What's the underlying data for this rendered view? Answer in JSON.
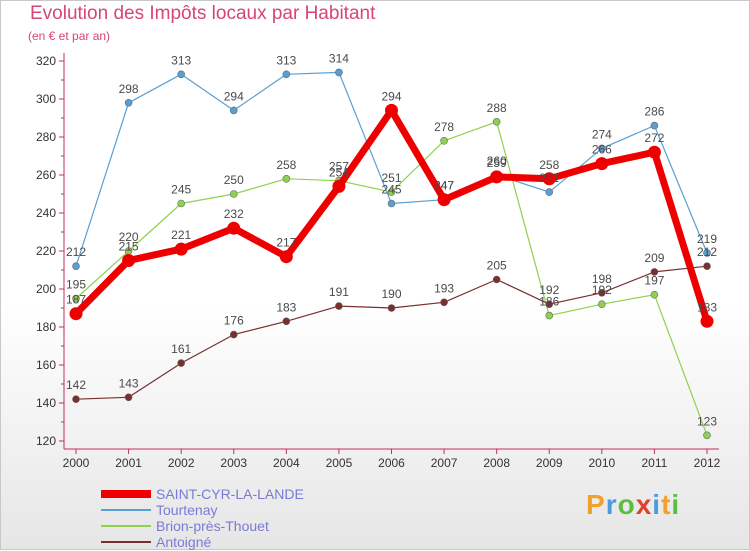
{
  "header": {
    "title": "Evolution des Impôts locaux par Habitant",
    "subtitle": "(en € et par an)"
  },
  "brand": {
    "logo_letters": [
      "P",
      "r",
      "o",
      "x",
      "i",
      "t",
      "i"
    ],
    "logo_colors": [
      "#f2a02c",
      "#4b9be0",
      "#5cbf3c",
      "#e0422c",
      "#4b9be0",
      "#f2a02c",
      "#5cbf3c"
    ]
  },
  "chart_data": {
    "type": "line",
    "title": "Evolution des Impôts locaux par Habitant",
    "subtitle": "(en € et par an)",
    "categories": [
      "2000",
      "2001",
      "2002",
      "2003",
      "2004",
      "2005",
      "2006",
      "2007",
      "2008",
      "2009",
      "2010",
      "2011",
      "2012"
    ],
    "ylim": [
      120,
      320
    ],
    "yticks": [
      120,
      140,
      160,
      180,
      200,
      220,
      240,
      260,
      280,
      300,
      320
    ],
    "grid": false,
    "legend_position": "bottom-left",
    "series": [
      {
        "name": "Tourtenay",
        "color": "#5a9fd4",
        "stroke": 1.2,
        "marker": 3.5,
        "values": [
          212,
          298,
          313,
          294,
          313,
          314,
          245,
          247,
          260,
          251,
          274,
          286,
          219
        ]
      },
      {
        "name": "Brion-près-Thouet",
        "color": "#8ed150",
        "stroke": 1.2,
        "marker": 3.5,
        "values": [
          195,
          220,
          245,
          250,
          258,
          257,
          251,
          278,
          288,
          186,
          192,
          197,
          123
        ]
      },
      {
        "name": "Antoigné",
        "color": "#7a2e2e",
        "stroke": 1.2,
        "marker": 3.5,
        "values": [
          142,
          143,
          161,
          176,
          183,
          191,
          190,
          193,
          205,
          192,
          198,
          209,
          212
        ]
      },
      {
        "name": "SAINT-CYR-LA-LANDE",
        "color": "#ee0000",
        "stroke": 7,
        "marker": 6.5,
        "values": [
          187,
          215,
          221,
          232,
          217,
          254,
          294,
          247,
          259,
          258,
          266,
          272,
          183
        ]
      }
    ],
    "legend_order": [
      "SAINT-CYR-LA-LANDE",
      "Tourtenay",
      "Brion-près-Thouet",
      "Antoigné"
    ]
  }
}
